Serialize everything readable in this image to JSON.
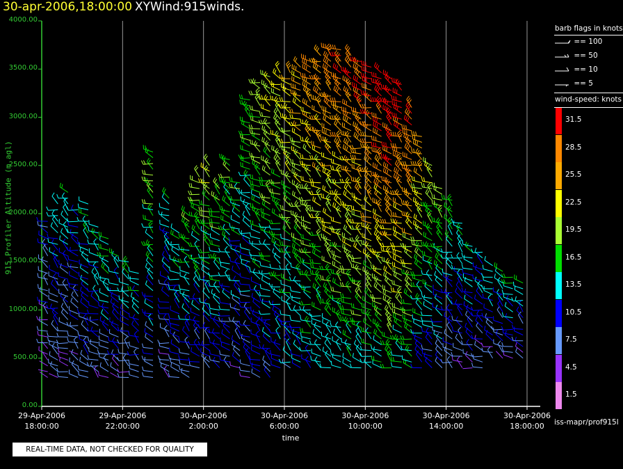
{
  "header": {
    "date_time": "30-apr-2006,18:00:00",
    "product": "XYWind:915winds."
  },
  "chart_data": {
    "type": "scatter",
    "title": "30-apr-2006,18:00:00 XYWind:915winds.",
    "xlabel": "time",
    "ylabel": "915 Profiler Altitude (m agl)",
    "ylim": [
      0,
      4000
    ],
    "y_ticks": [
      "0.00",
      "500.00",
      "1000.00",
      "1500.00",
      "2000.00",
      "2500.00",
      "3000.00",
      "3500.00",
      "4000.00"
    ],
    "x_ticks": [
      {
        "date": "29-Apr-2006",
        "time": "18:00:00"
      },
      {
        "date": "29-Apr-2006",
        "time": "22:00:00"
      },
      {
        "date": "30-Apr-2006",
        "time": "2:00:00"
      },
      {
        "date": "30-Apr-2006",
        "time": "6:00:00"
      },
      {
        "date": "30-Apr-2006",
        "time": "10:00:00"
      },
      {
        "date": "30-Apr-2006",
        "time": "14:00:00"
      },
      {
        "date": "30-Apr-2006",
        "time": "18:00:00"
      }
    ],
    "x_range_hours": [
      0,
      24.1
    ],
    "grid": "vertical",
    "legend_placement": "right",
    "speed_bins": [
      {
        "label": "31.5",
        "color": "#ff0000"
      },
      {
        "label": "28.5",
        "color": "#ff8800"
      },
      {
        "label": "25.5",
        "color": "#ffaa00"
      },
      {
        "label": "22.5",
        "color": "#ffff00"
      },
      {
        "label": "19.5",
        "color": "#aaff33"
      },
      {
        "label": "16.5",
        "color": "#00dd00"
      },
      {
        "label": "13.5",
        "color": "#00ffff"
      },
      {
        "label": "10.5",
        "color": "#0000ff"
      },
      {
        "label": "7.5",
        "color": "#6699ff"
      },
      {
        "label": "4.5",
        "color": "#9933ff"
      },
      {
        "label": "1.5",
        "color": "#ee88ee"
      }
    ],
    "profile_columns": [
      {
        "t": 0.3,
        "bottom": 300,
        "top": 1950,
        "speed": 8
      },
      {
        "t": 0.8,
        "bottom": 300,
        "top": 2100,
        "speed": 11
      },
      {
        "t": 1.3,
        "bottom": 300,
        "top": 2250,
        "speed": 11
      },
      {
        "t": 1.8,
        "bottom": 300,
        "top": 2050,
        "speed": 10
      },
      {
        "t": 2.3,
        "bottom": 300,
        "top": 2100,
        "speed": 12
      },
      {
        "t": 2.8,
        "bottom": 300,
        "top": 1900,
        "speed": 12
      },
      {
        "t": 3.3,
        "bottom": 300,
        "top": 1750,
        "speed": 13
      },
      {
        "t": 3.8,
        "bottom": 300,
        "top": 1600,
        "speed": 12
      },
      {
        "t": 4.3,
        "bottom": 300,
        "top": 1500,
        "speed": 12
      },
      {
        "t": 4.8,
        "bottom": 300,
        "top": 1400,
        "speed": 12
      },
      {
        "t": 5.5,
        "bottom": 300,
        "top": 2650,
        "speed": 15
      },
      {
        "t": 6.3,
        "bottom": 300,
        "top": 2200,
        "speed": 11
      },
      {
        "t": 6.8,
        "bottom": 300,
        "top": 1800,
        "speed": 12
      },
      {
        "t": 7.3,
        "bottom": 300,
        "top": 2000,
        "speed": 14
      },
      {
        "t": 7.8,
        "bottom": 400,
        "top": 2400,
        "speed": 15
      },
      {
        "t": 8.3,
        "bottom": 400,
        "top": 2500,
        "speed": 16
      },
      {
        "t": 8.8,
        "bottom": 400,
        "top": 2300,
        "speed": 15
      },
      {
        "t": 9.3,
        "bottom": 400,
        "top": 2600,
        "speed": 14
      },
      {
        "t": 9.8,
        "bottom": 400,
        "top": 2350,
        "speed": 13
      },
      {
        "t": 10.3,
        "bottom": 300,
        "top": 3200,
        "speed": 14
      },
      {
        "t": 10.8,
        "bottom": 300,
        "top": 3400,
        "speed": 16
      },
      {
        "t": 11.3,
        "bottom": 300,
        "top": 3450,
        "speed": 17
      },
      {
        "t": 11.8,
        "bottom": 400,
        "top": 3500,
        "speed": 18
      },
      {
        "t": 12.3,
        "bottom": 400,
        "top": 3500,
        "speed": 19
      },
      {
        "t": 12.8,
        "bottom": 400,
        "top": 3550,
        "speed": 20
      },
      {
        "t": 13.3,
        "bottom": 400,
        "top": 3600,
        "speed": 21
      },
      {
        "t": 13.8,
        "bottom": 400,
        "top": 3650,
        "speed": 22
      },
      {
        "t": 14.3,
        "bottom": 400,
        "top": 3700,
        "speed": 23
      },
      {
        "t": 14.8,
        "bottom": 400,
        "top": 3700,
        "speed": 23
      },
      {
        "t": 15.3,
        "bottom": 400,
        "top": 3650,
        "speed": 24
      },
      {
        "t": 15.8,
        "bottom": 400,
        "top": 3600,
        "speed": 24
      },
      {
        "t": 16.3,
        "bottom": 400,
        "top": 3550,
        "speed": 25
      },
      {
        "t": 16.8,
        "bottom": 400,
        "top": 3500,
        "speed": 26
      },
      {
        "t": 17.3,
        "bottom": 400,
        "top": 3450,
        "speed": 27
      },
      {
        "t": 17.8,
        "bottom": 400,
        "top": 3350,
        "speed": 26
      },
      {
        "t": 18.3,
        "bottom": 400,
        "top": 3150,
        "speed": 24
      },
      {
        "t": 18.8,
        "bottom": 400,
        "top": 2800,
        "speed": 20
      },
      {
        "t": 19.3,
        "bottom": 400,
        "top": 2500,
        "speed": 17
      },
      {
        "t": 19.8,
        "bottom": 400,
        "top": 2300,
        "speed": 15
      },
      {
        "t": 20.3,
        "bottom": 400,
        "top": 2150,
        "speed": 13
      },
      {
        "t": 20.8,
        "bottom": 400,
        "top": 1900,
        "speed": 12
      },
      {
        "t": 21.3,
        "bottom": 400,
        "top": 1700,
        "speed": 12
      },
      {
        "t": 21.8,
        "bottom": 400,
        "top": 1600,
        "speed": 11
      },
      {
        "t": 22.3,
        "bottom": 500,
        "top": 1500,
        "speed": 11
      },
      {
        "t": 22.8,
        "bottom": 500,
        "top": 1400,
        "speed": 11
      },
      {
        "t": 23.3,
        "bottom": 500,
        "top": 1350,
        "speed": 12
      },
      {
        "t": 23.8,
        "bottom": 500,
        "top": 1300,
        "speed": 12
      }
    ]
  },
  "legend": {
    "barb_title": "barb flags in knots",
    "barb_items": [
      "== 100",
      "== 50",
      "== 10",
      "== 5"
    ],
    "speed_title": "wind-speed: knots",
    "source": "iss-mapr/prof915l"
  },
  "footer": {
    "qc_notice": "REAL-TIME DATA, NOT CHECKED FOR QUALITY"
  }
}
